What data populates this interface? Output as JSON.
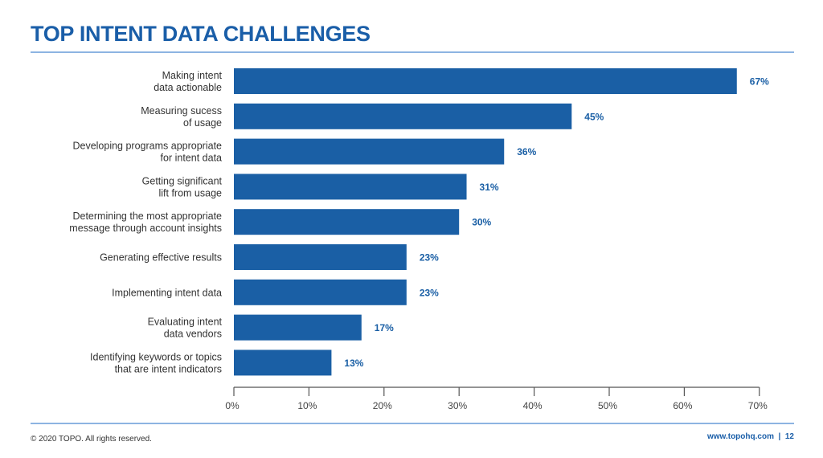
{
  "title": "TOP INTENT DATA CHALLENGES",
  "footer": {
    "copyright": "© 2020 TOPO. All rights reserved.",
    "site_page": "www.topohq.com  |  12"
  },
  "colors": {
    "bar": "#1a5fa5",
    "title": "#1a5ea8",
    "rule": "#8db4e2",
    "axis": "#555555"
  },
  "chart_data": {
    "type": "bar",
    "orientation": "horizontal",
    "categories": [
      "Making intent\ndata actionable",
      "Measuring sucess\nof usage",
      "Developing programs appropriate\nfor intent data",
      "Getting significant\nlift from usage",
      "Determining the most appropriate\nmessage through account insights",
      "Generating effective results",
      "Implementing intent data",
      "Evaluating intent\ndata vendors",
      "Identifying keywords or topics\nthat are intent indicators"
    ],
    "values": [
      67,
      45,
      36,
      31,
      30,
      23,
      23,
      17,
      13
    ],
    "data_labels": [
      "67%",
      "45%",
      "36%",
      "31%",
      "30%",
      "23%",
      "23%",
      "17%",
      "13%"
    ],
    "xlim": [
      0,
      70
    ],
    "x_ticks": [
      0,
      10,
      20,
      30,
      40,
      50,
      60,
      70
    ],
    "x_tick_labels": [
      "0%",
      "10%",
      "20%",
      "30%",
      "40%",
      "50%",
      "60%",
      "70%"
    ],
    "grid": false,
    "legend": "none"
  }
}
